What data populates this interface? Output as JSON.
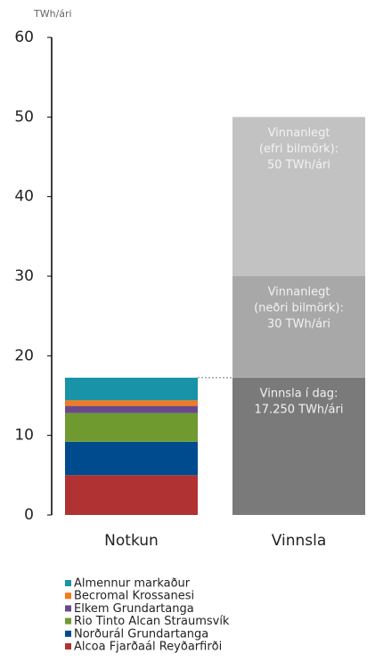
{
  "chart_data": {
    "type": "stacked_bar",
    "y_axis_label": "TWh/ári",
    "categories": [
      "Notkun",
      "Vinnsla"
    ],
    "ylim": [
      0,
      60
    ],
    "yticks": [
      0,
      10,
      20,
      30,
      40,
      50,
      60
    ],
    "series": [
      {
        "name": "Alcoa Fjarðaál Reyðarfirði",
        "color": "#b03232",
        "values": [
          5.0,
          null
        ]
      },
      {
        "name": "Norðurál Grundartanga",
        "color": "#004b8d",
        "values": [
          4.2,
          null
        ]
      },
      {
        "name": "Rio Tinto Alcan Straumsvík",
        "color": "#6e9a2f",
        "values": [
          3.6,
          null
        ]
      },
      {
        "name": "Elkem Grundartanga",
        "color": "#684a8b",
        "values": [
          0.9,
          null
        ]
      },
      {
        "name": "Becromal Krossanesi",
        "color": "#f47a20",
        "values": [
          0.7,
          null
        ]
      },
      {
        "name": "Almennur markaður",
        "color": "#1993a8",
        "values": [
          2.85,
          null
        ]
      }
    ],
    "vinnsla_segments": [
      {
        "value": 17.25,
        "color": "#7a7a7a",
        "label_lines": [
          "Vinnsla í dag:",
          "17.250 TWh/ári"
        ]
      },
      {
        "value": 12.75,
        "color": "#a8a8a8",
        "label_lines": [
          "Vinnanlegt",
          "(neðri bilmörk):",
          "30 TWh/ári"
        ]
      },
      {
        "value": 20,
        "color": "#c2c2c2",
        "label_lines": [
          "Vinnanlegt",
          "(efri bilmörk):",
          "50 TWh/ári"
        ]
      }
    ]
  }
}
